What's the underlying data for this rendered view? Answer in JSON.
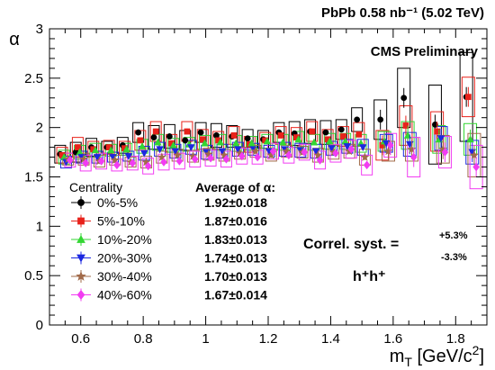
{
  "chart_data": {
    "type": "scatter",
    "title": "PbPb 0.58 nb⁻¹ (5.02 TeV)",
    "subtitle": "CMS Preliminary",
    "xlabel": "m_T [GeV/c^2]",
    "xlabel_parts": {
      "main": "m",
      "sub": "T",
      "unit": " [GeV/c",
      "sup": "2",
      "close": "]"
    },
    "ylabel": "α",
    "xlim": [
      0.5,
      1.9
    ],
    "ylim": [
      0,
      3
    ],
    "x_ticks": [
      "0.6",
      "0.8",
      "1",
      "1.2",
      "1.4",
      "1.6",
      "1.8"
    ],
    "y_ticks": [
      "0",
      "0.5",
      "1",
      "1.5",
      "2",
      "2.5",
      "3"
    ],
    "legend_title": "Centrality",
    "legend_position": "bottom-left",
    "average_title": "Average of α:",
    "correl_label": "Correl. syst. =",
    "correl_plus": "+5.3%",
    "correl_minus": "-3.3%",
    "particles": "h⁺h⁺",
    "x": [
      0.55,
      0.6,
      0.65,
      0.7,
      0.75,
      0.8,
      0.85,
      0.9,
      0.95,
      1.0,
      1.05,
      1.1,
      1.15,
      1.2,
      1.25,
      1.3,
      1.35,
      1.4,
      1.45,
      1.5,
      1.575,
      1.65,
      1.75,
      1.85
    ],
    "series": [
      {
        "name": "0%-5%",
        "average": "1.92±0.018",
        "color": "#000000",
        "marker": "circle",
        "values": [
          1.73,
          1.75,
          1.8,
          1.8,
          1.82,
          1.95,
          1.9,
          1.91,
          1.87,
          1.95,
          1.92,
          1.91,
          1.89,
          1.88,
          1.95,
          1.94,
          1.96,
          1.95,
          1.98,
          2.08,
          2.08,
          2.3,
          2.03,
          2.31
        ],
        "syst": [
          0.09,
          0.1,
          0.09,
          0.06,
          0.08,
          0.1,
          0.12,
          0.12,
          0.1,
          0.1,
          0.12,
          0.11,
          0.09,
          0.09,
          0.1,
          0.12,
          0.12,
          0.12,
          0.1,
          0.12,
          0.2,
          0.3,
          0.4,
          0.45
        ]
      },
      {
        "name": "5%-10%",
        "average": "1.87±0.016",
        "color": "#e8221b",
        "marker": "square",
        "values": [
          1.72,
          1.8,
          1.78,
          1.8,
          1.79,
          1.87,
          1.96,
          1.84,
          1.96,
          1.88,
          1.87,
          1.92,
          1.83,
          1.87,
          1.92,
          1.9,
          1.96,
          1.88,
          1.91,
          1.93,
          1.82,
          2.02,
          1.96,
          2.31
        ],
        "syst": [
          0.08,
          0.1,
          0.08,
          0.07,
          0.07,
          0.1,
          0.1,
          0.09,
          0.1,
          0.1,
          0.09,
          0.09,
          0.08,
          0.08,
          0.09,
          0.1,
          0.1,
          0.1,
          0.1,
          0.12,
          0.15,
          0.2,
          0.2,
          0.2
        ]
      },
      {
        "name": "10%-20%",
        "average": "1.83±0.013",
        "color": "#33d633",
        "marker": "triangle-up",
        "values": [
          1.7,
          1.75,
          1.77,
          1.77,
          1.78,
          1.81,
          1.85,
          1.82,
          1.83,
          1.84,
          1.85,
          1.84,
          1.84,
          1.86,
          1.85,
          1.88,
          1.85,
          1.86,
          1.86,
          1.84,
          1.86,
          1.92,
          1.88,
          1.88
        ],
        "syst": [
          0.07,
          0.07,
          0.07,
          0.06,
          0.06,
          0.07,
          0.08,
          0.07,
          0.07,
          0.08,
          0.08,
          0.08,
          0.07,
          0.07,
          0.08,
          0.08,
          0.08,
          0.08,
          0.08,
          0.09,
          0.1,
          0.14,
          0.14,
          0.16
        ]
      },
      {
        "name": "20%-30%",
        "average": "1.74±0.013",
        "color": "#1c28e0",
        "marker": "triangle-down",
        "values": [
          1.65,
          1.7,
          1.7,
          1.7,
          1.71,
          1.74,
          1.78,
          1.76,
          1.8,
          1.75,
          1.76,
          1.78,
          1.78,
          1.76,
          1.78,
          1.77,
          1.76,
          1.79,
          1.81,
          1.8,
          1.84,
          1.83,
          1.89,
          1.75
        ],
        "syst": [
          0.06,
          0.06,
          0.06,
          0.05,
          0.05,
          0.07,
          0.07,
          0.07,
          0.07,
          0.07,
          0.07,
          0.07,
          0.06,
          0.06,
          0.07,
          0.07,
          0.07,
          0.07,
          0.07,
          0.08,
          0.09,
          0.12,
          0.12,
          0.12
        ]
      },
      {
        "name": "30%-40%",
        "average": "1.70±0.013",
        "color": "#a26b4a",
        "marker": "star",
        "values": [
          1.68,
          1.68,
          1.66,
          1.67,
          1.65,
          1.65,
          1.7,
          1.72,
          1.71,
          1.73,
          1.72,
          1.74,
          1.76,
          1.72,
          1.76,
          1.75,
          1.72,
          1.75,
          1.76,
          1.7,
          1.76,
          1.78,
          1.78,
          1.72
        ],
        "syst": [
          0.06,
          0.06,
          0.06,
          0.05,
          0.05,
          0.06,
          0.06,
          0.06,
          0.06,
          0.06,
          0.06,
          0.06,
          0.06,
          0.06,
          0.06,
          0.06,
          0.07,
          0.07,
          0.07,
          0.08,
          0.1,
          0.12,
          0.14,
          0.22
        ]
      },
      {
        "name": "40%-60%",
        "average": "1.67±0.014",
        "color": "#f23cf2",
        "marker": "diamond",
        "values": [
          1.67,
          1.64,
          1.66,
          1.62,
          1.64,
          1.61,
          1.65,
          1.66,
          1.68,
          1.69,
          1.68,
          1.71,
          1.7,
          1.76,
          1.72,
          1.75,
          1.67,
          1.74,
          1.78,
          1.62,
          1.82,
          1.7,
          1.75,
          1.6
        ],
        "syst": [
          0.07,
          0.08,
          0.08,
          0.06,
          0.07,
          0.08,
          0.08,
          0.08,
          0.08,
          0.08,
          0.08,
          0.08,
          0.07,
          0.08,
          0.08,
          0.08,
          0.09,
          0.09,
          0.09,
          0.1,
          0.12,
          0.2,
          0.16,
          0.22
        ]
      }
    ]
  }
}
